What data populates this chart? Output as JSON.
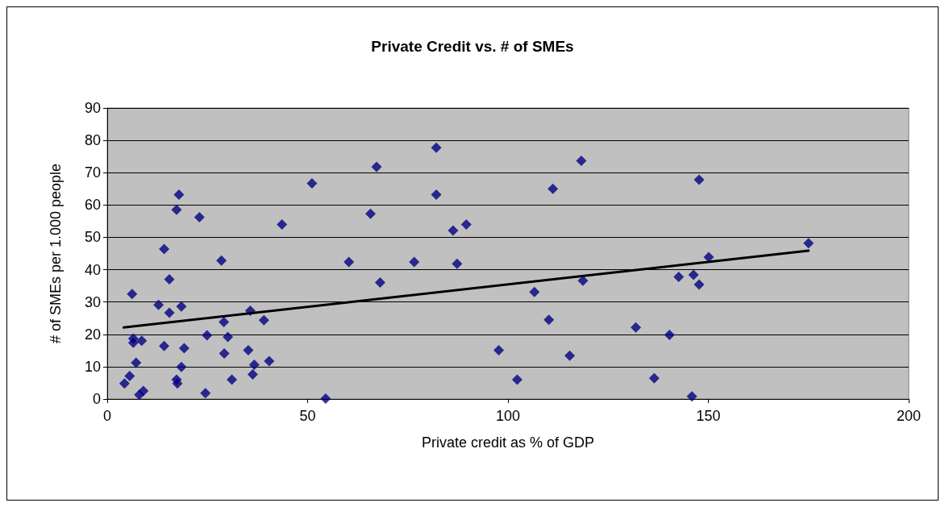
{
  "chart_data": {
    "type": "scatter",
    "title": "Private Credit vs. # of SMEs",
    "xlabel": "Private credit as % of GDP",
    "ylabel": "# of SMEs per 1.000 people",
    "xlim": [
      0,
      200
    ],
    "xticks": [
      0,
      50,
      100,
      150,
      200
    ],
    "ylim": [
      0,
      90
    ],
    "yticks": [
      0,
      10,
      20,
      30,
      40,
      50,
      60,
      70,
      80,
      90
    ],
    "grid": "y",
    "marker": "diamond",
    "series": [
      {
        "color": "#000080",
        "x": [
          4.3,
          5.6,
          6.2,
          6.5,
          6.5,
          8.6,
          7.2,
          8.0,
          9.0,
          12.8,
          14.2,
          14.2,
          15.5,
          15.5,
          17.3,
          17.9,
          18.5,
          17.3,
          17.5,
          18.5,
          19.2,
          23.0,
          24.9,
          24.5,
          28.5,
          29.1,
          30.1,
          29.2,
          31.1,
          35.2,
          35.7,
          39.1,
          36.7,
          36.3,
          40.4,
          43.6,
          51.1,
          54.5,
          60.3,
          67.2,
          65.7,
          68.1,
          76.6,
          82.1,
          82.1,
          86.3,
          89.6,
          87.3,
          97.7,
          102.3,
          106.6,
          110.2,
          111.2,
          115.4,
          118.3,
          118.7,
          131.9,
          136.5,
          140.3,
          142.6,
          146.3,
          147.7,
          147.7,
          145.9,
          150.1,
          175.0
        ],
        "values": [
          4.8,
          7.1,
          32.5,
          18.7,
          17.4,
          18.0,
          11.2,
          1.3,
          2.5,
          29.1,
          46.4,
          16.4,
          37.0,
          26.7,
          58.5,
          63.2,
          28.6,
          6.0,
          4.8,
          9.9,
          15.7,
          56.2,
          19.7,
          1.8,
          42.8,
          23.8,
          19.2,
          14.1,
          6.0,
          15.1,
          27.3,
          24.4,
          10.6,
          7.6,
          11.7,
          54.0,
          66.7,
          0.1,
          42.4,
          71.8,
          57.3,
          36.0,
          42.4,
          77.7,
          63.2,
          52.1,
          54.0,
          41.8,
          15.1,
          6.0,
          33.1,
          24.5,
          65.0,
          13.4,
          73.7,
          36.6,
          22.1,
          6.4,
          19.8,
          37.8,
          38.4,
          35.4,
          67.8,
          0.8,
          43.9,
          48.2
        ]
      },
      {
        "type": "line",
        "color": "#000000",
        "marker": "none",
        "line_style": "solid",
        "x": [
          4.1,
          175.0
        ],
        "values": [
          22.1,
          45.9
        ]
      }
    ]
  }
}
